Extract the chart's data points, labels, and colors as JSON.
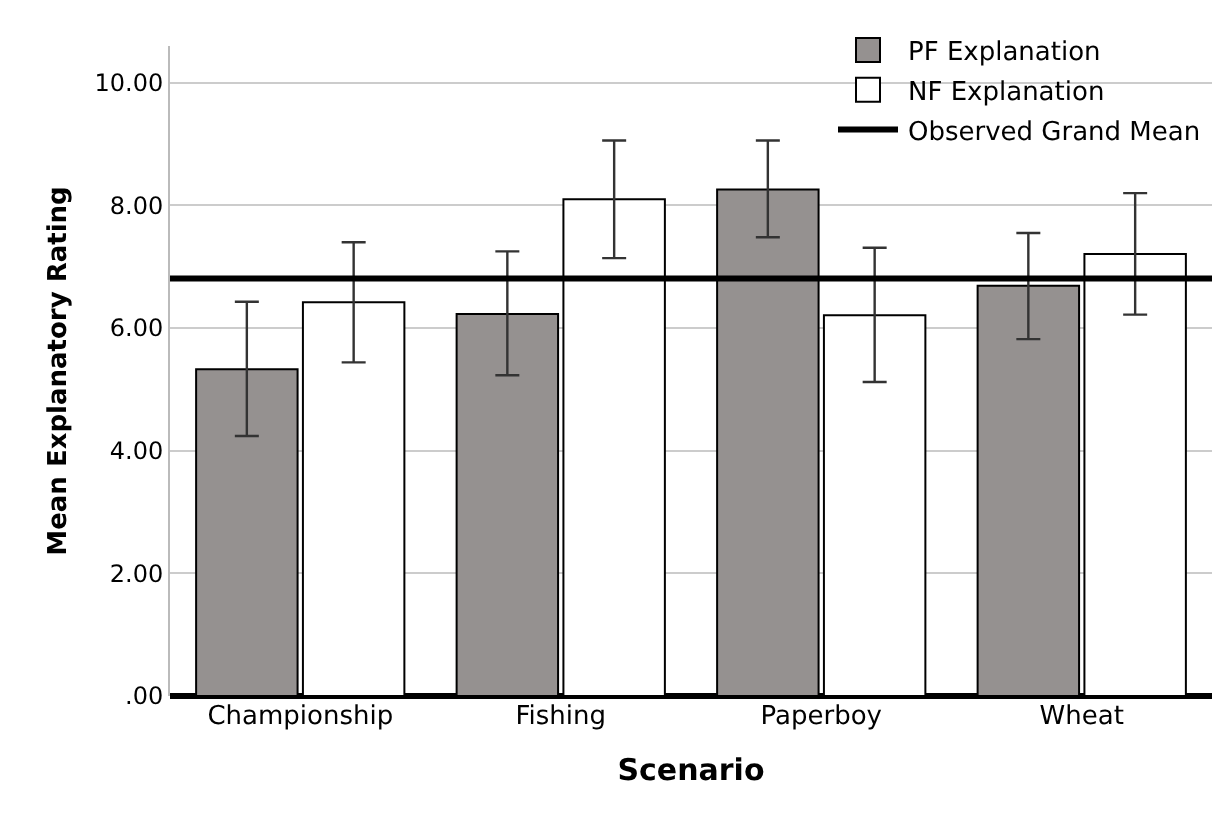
{
  "chart_data": {
    "type": "bar",
    "xlabel": "Scenario",
    "ylabel": "Mean Explanatory Rating",
    "categories": [
      "Championship",
      "Fishing",
      "Paperboy",
      "Wheat"
    ],
    "series": [
      {
        "name": "PF Explanation",
        "color": "#959190",
        "values": [
          5.33,
          6.23,
          8.26,
          6.69
        ],
        "errors": [
          [
            4.24,
            6.43
          ],
          [
            5.23,
            7.25
          ],
          [
            7.48,
            9.06
          ],
          [
            5.82,
            7.55
          ]
        ]
      },
      {
        "name": "NF Explanation",
        "color": "#ffffff",
        "values": [
          6.42,
          8.1,
          6.21,
          7.21
        ],
        "errors": [
          [
            5.44,
            7.4
          ],
          [
            7.14,
            9.06
          ],
          [
            5.12,
            7.31
          ],
          [
            6.22,
            8.2
          ]
        ]
      }
    ],
    "ylim": [
      0,
      10.6
    ],
    "yticks": [
      {
        "value": 0,
        "label": ".00"
      },
      {
        "value": 2,
        "label": "2.00"
      },
      {
        "value": 4,
        "label": "4.00"
      },
      {
        "value": 6,
        "label": "6.00"
      },
      {
        "value": 8,
        "label": "8.00"
      },
      {
        "value": 10,
        "label": "10.00"
      }
    ],
    "ref_lines": [
      {
        "axis": "y",
        "value": 6.81,
        "label": "Observed Grand Mean",
        "color": "#000000"
      }
    ],
    "grid": "y",
    "legend": "top right"
  }
}
